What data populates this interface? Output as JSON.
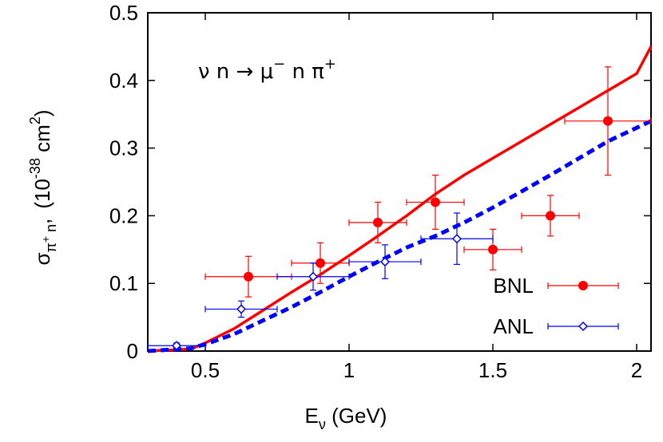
{
  "chart_data": {
    "type": "scatter",
    "title": "",
    "annotation": {
      "base": "ν n → μ",
      "sup1": "−",
      "mid": " n π",
      "sup2": "+"
    },
    "xlabel": {
      "text": "E",
      "sub": "ν",
      "rest": " (GeV)"
    },
    "ylabel": {
      "sigma": "σ",
      "sub": "π",
      "subsup": "+",
      "subrest": " n",
      "comma": ",",
      "open": "(10",
      "exp": "-38",
      "unit": " cm",
      "unitexp": "2",
      "close": ")"
    },
    "xlim": [
      0.3,
      2.05
    ],
    "ylim": [
      0,
      0.5
    ],
    "xticks": [
      0.5,
      1,
      1.5,
      2
    ],
    "xtick_labels": [
      "0.5",
      "1",
      "1.5",
      "2"
    ],
    "yticks": [
      0,
      0.1,
      0.2,
      0.3,
      0.4,
      0.5
    ],
    "ytick_labels": [
      "0",
      "0.1",
      "0.2",
      "0.3",
      "0.4",
      "0.5"
    ],
    "legend_position": "bottom-right",
    "series": [
      {
        "name": "BNL",
        "kind": "points",
        "marker": "filled-circle",
        "color": "#ff0000",
        "points": [
          {
            "x": 0.65,
            "y": 0.11,
            "xerr": 0.15,
            "yerr": 0.03
          },
          {
            "x": 0.9,
            "y": 0.13,
            "xerr": 0.1,
            "yerr": 0.03
          },
          {
            "x": 1.1,
            "y": 0.19,
            "xerr": 0.1,
            "yerr": 0.03
          },
          {
            "x": 1.3,
            "y": 0.22,
            "xerr": 0.1,
            "yerr": 0.04
          },
          {
            "x": 1.5,
            "y": 0.15,
            "xerr": 0.1,
            "yerr": 0.03
          },
          {
            "x": 1.7,
            "y": 0.2,
            "xerr": 0.1,
            "yerr": 0.03
          },
          {
            "x": 1.9,
            "y": 0.34,
            "xerr": 0.15,
            "yerr": 0.08
          }
        ]
      },
      {
        "name": "ANL",
        "kind": "points",
        "marker": "open-diamond",
        "color": "#0000ff",
        "points": [
          {
            "x": 0.4,
            "y": 0.008,
            "xerr": 0.1,
            "yerr": 0.004
          },
          {
            "x": 0.625,
            "y": 0.062,
            "xerr": 0.125,
            "yerr": 0.012
          },
          {
            "x": 0.875,
            "y": 0.11,
            "xerr": 0.125,
            "yerr": 0.02
          },
          {
            "x": 1.125,
            "y": 0.132,
            "xerr": 0.125,
            "yerr": 0.025
          },
          {
            "x": 1.375,
            "y": 0.166,
            "xerr": 0.125,
            "yerr": 0.038
          }
        ]
      },
      {
        "kind": "line",
        "style": "solid",
        "color": "#ff0000",
        "x": [
          0.3,
          0.45,
          0.5,
          0.6,
          0.7,
          0.8,
          0.9,
          1.0,
          1.1,
          1.2,
          1.3,
          1.4,
          1.5,
          1.6,
          1.7,
          1.8,
          1.9,
          2.0,
          2.05
        ],
        "y": [
          0,
          0.003,
          0.012,
          0.033,
          0.06,
          0.087,
          0.113,
          0.141,
          0.17,
          0.2,
          0.232,
          0.26,
          0.285,
          0.31,
          0.335,
          0.36,
          0.385,
          0.41,
          0.45
        ]
      },
      {
        "kind": "line",
        "style": "dashed",
        "color": "#0000ff",
        "x": [
          0.3,
          0.45,
          0.5,
          0.6,
          0.7,
          0.8,
          0.9,
          1.0,
          1.1,
          1.2,
          1.3,
          1.4,
          1.5,
          1.6,
          1.7,
          1.8,
          1.9,
          2.0,
          2.05
        ],
        "y": [
          0,
          0.004,
          0.01,
          0.025,
          0.045,
          0.065,
          0.087,
          0.11,
          0.132,
          0.153,
          0.17,
          0.19,
          0.212,
          0.236,
          0.26,
          0.285,
          0.31,
          0.33,
          0.34
        ]
      }
    ]
  }
}
